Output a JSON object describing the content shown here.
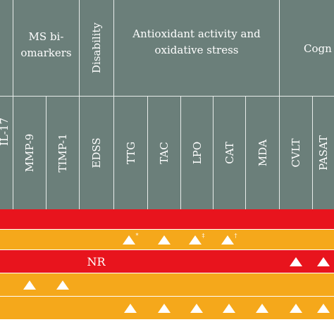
{
  "colors": {
    "header_bg": "#6b7f7a",
    "row_red": "#e8141d",
    "row_orange": "#f5a81b",
    "divider": "#e8ecea",
    "mark": "#ffffff"
  },
  "headers": {
    "groups": [
      {
        "label": "MS bi-\nomarkers"
      },
      {
        "label": "Disability"
      },
      {
        "label": "Antioxidant activity and\noxidative stress"
      },
      {
        "label": "Cogn"
      }
    ],
    "columns": [
      {
        "label": "IL-17"
      },
      {
        "label": "MMP-9"
      },
      {
        "label": "TIMP-1"
      },
      {
        "label": "EDSS"
      },
      {
        "label": "TTG"
      },
      {
        "label": "TAC"
      },
      {
        "label": "LPO"
      },
      {
        "label": "CAT"
      },
      {
        "label": "MDA"
      },
      {
        "label": "CVLT"
      },
      {
        "label": "PASAT"
      }
    ]
  },
  "rows": [
    {
      "color": "red",
      "cells": []
    },
    {
      "color": "orange",
      "cells": [
        {
          "col": 4,
          "mark": "triangle",
          "superscript": "*"
        },
        {
          "col": 5,
          "mark": "triangle"
        },
        {
          "col": 6,
          "mark": "triangle",
          "superscript": "‡"
        },
        {
          "col": 7,
          "mark": "triangle",
          "superscript": "†"
        }
      ]
    },
    {
      "color": "red",
      "cells": [
        {
          "col": 3,
          "text": "NR"
        },
        {
          "col": 9,
          "mark": "triangle"
        },
        {
          "col": 10,
          "mark": "triangle"
        }
      ]
    },
    {
      "color": "orange",
      "cells": [
        {
          "col": 1,
          "mark": "triangle"
        },
        {
          "col": 2,
          "mark": "triangle"
        }
      ]
    },
    {
      "color": "orange",
      "cells": [
        {
          "col": 4,
          "mark": "triangle"
        },
        {
          "col": 5,
          "mark": "triangle"
        },
        {
          "col": 6,
          "mark": "triangle"
        },
        {
          "col": 7,
          "mark": "triangle"
        },
        {
          "col": 8,
          "mark": "triangle"
        },
        {
          "col": 9,
          "mark": "triangle"
        },
        {
          "col": 10,
          "mark": "triangle"
        }
      ]
    }
  ]
}
